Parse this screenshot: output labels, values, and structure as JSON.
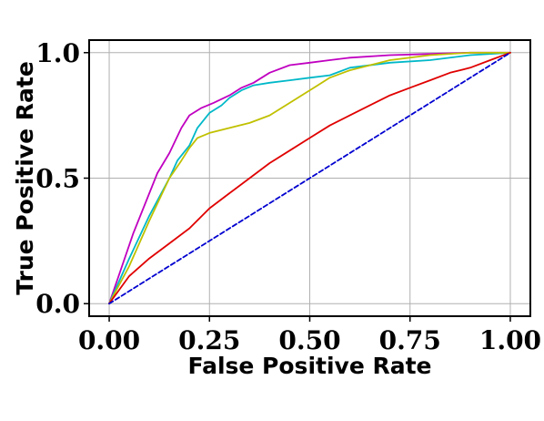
{
  "chart_data": {
    "type": "line",
    "title": "",
    "xlabel": "False Positive Rate",
    "ylabel": "True Positive Rate",
    "xlim": [
      -0.05,
      1.05
    ],
    "ylim": [
      -0.05,
      1.05
    ],
    "grid": true,
    "legend": "none",
    "xticks": [
      "0.00",
      "0.25",
      "0.50",
      "0.75",
      "1.00"
    ],
    "yticks": [
      "0.0",
      "0.5",
      "1.0"
    ],
    "series": [
      {
        "color": "#c000c0",
        "style": "solid",
        "x": [
          0.0,
          0.06,
          0.12,
          0.15,
          0.18,
          0.2,
          0.23,
          0.26,
          0.3,
          0.33,
          0.36,
          0.4,
          0.45,
          0.5,
          0.55,
          0.6,
          0.7,
          0.8,
          0.9,
          1.0
        ],
        "y": [
          0.0,
          0.28,
          0.52,
          0.6,
          0.7,
          0.75,
          0.78,
          0.8,
          0.83,
          0.86,
          0.88,
          0.92,
          0.95,
          0.96,
          0.97,
          0.98,
          0.99,
          0.995,
          1.0,
          1.0
        ]
      },
      {
        "color": "#00b8c8",
        "style": "solid",
        "x": [
          0.0,
          0.05,
          0.1,
          0.15,
          0.17,
          0.2,
          0.22,
          0.25,
          0.28,
          0.3,
          0.33,
          0.36,
          0.4,
          0.45,
          0.5,
          0.55,
          0.6,
          0.7,
          0.8,
          0.9,
          1.0
        ],
        "y": [
          0.0,
          0.18,
          0.35,
          0.5,
          0.57,
          0.63,
          0.7,
          0.76,
          0.79,
          0.82,
          0.85,
          0.87,
          0.88,
          0.89,
          0.9,
          0.91,
          0.94,
          0.96,
          0.97,
          0.99,
          1.0
        ]
      },
      {
        "color": "#c0c000",
        "style": "solid",
        "x": [
          0.0,
          0.05,
          0.1,
          0.15,
          0.18,
          0.2,
          0.22,
          0.25,
          0.3,
          0.35,
          0.4,
          0.45,
          0.5,
          0.52,
          0.55,
          0.6,
          0.7,
          0.8,
          0.9,
          1.0
        ],
        "y": [
          0.0,
          0.15,
          0.33,
          0.5,
          0.57,
          0.62,
          0.66,
          0.68,
          0.7,
          0.72,
          0.75,
          0.8,
          0.85,
          0.87,
          0.9,
          0.93,
          0.97,
          0.99,
          1.0,
          1.0
        ]
      },
      {
        "color": "#e00000",
        "style": "solid",
        "x": [
          0.0,
          0.05,
          0.1,
          0.15,
          0.2,
          0.25,
          0.3,
          0.35,
          0.4,
          0.45,
          0.5,
          0.55,
          0.6,
          0.65,
          0.7,
          0.75,
          0.8,
          0.85,
          0.9,
          0.95,
          1.0
        ],
        "y": [
          0.0,
          0.11,
          0.18,
          0.24,
          0.3,
          0.38,
          0.44,
          0.5,
          0.56,
          0.61,
          0.66,
          0.71,
          0.75,
          0.79,
          0.83,
          0.86,
          0.89,
          0.92,
          0.94,
          0.97,
          1.0
        ]
      },
      {
        "color": "#0000d0",
        "style": "dashed",
        "x": [
          0.0,
          1.0
        ],
        "y": [
          0.0,
          1.0
        ]
      }
    ]
  }
}
